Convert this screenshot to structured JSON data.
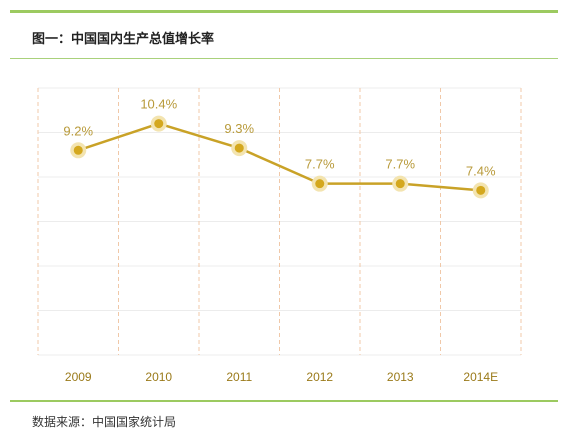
{
  "header": {
    "title": "图一：中国国内生产总值增长率"
  },
  "footer": {
    "source": "数据来源：中国国家统计局"
  },
  "colors": {
    "accent_green": "#9cca60",
    "line": "#c9a227",
    "marker": "#d4a81e",
    "halo": "#f3e4b0",
    "grid": "#ececec",
    "dashed": "#f0c8a8"
  },
  "chart_data": {
    "type": "line",
    "title": "图一：中国国内生产总值增长率",
    "categories": [
      "2009",
      "2010",
      "2011",
      "2012",
      "2013",
      "2014E"
    ],
    "values": [
      9.2,
      10.4,
      9.3,
      7.7,
      7.7,
      7.4
    ],
    "data_labels": [
      "9.2%",
      "10.4%",
      "9.3%",
      "7.7%",
      "7.7%",
      "7.4%"
    ],
    "unit": "%",
    "ylim": [
      0,
      12
    ],
    "grid": true
  }
}
